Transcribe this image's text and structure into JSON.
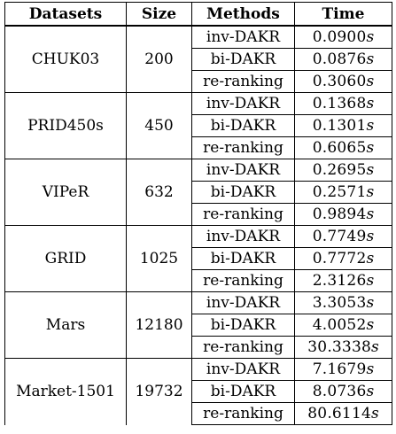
{
  "headers": [
    "Datasets",
    "Size",
    "Methods",
    "Time"
  ],
  "time_unit": "s",
  "groups": [
    {
      "dataset": "CHUK03",
      "size": "200",
      "rows": [
        {
          "method": "inv-DAKR",
          "time": "0.0900"
        },
        {
          "method": "bi-DAKR",
          "time": "0.0876"
        },
        {
          "method": "re-ranking",
          "time": "0.3060"
        }
      ]
    },
    {
      "dataset": "PRID450s",
      "size": "450",
      "rows": [
        {
          "method": "inv-DAKR",
          "time": "0.1368"
        },
        {
          "method": "bi-DAKR",
          "time": "0.1301"
        },
        {
          "method": "re-ranking",
          "time": "0.6065"
        }
      ]
    },
    {
      "dataset": "VIPeR",
      "size": "632",
      "rows": [
        {
          "method": "inv-DAKR",
          "time": "0.2695"
        },
        {
          "method": "bi-DAKR",
          "time": "0.2571"
        },
        {
          "method": "re-ranking",
          "time": "0.9894"
        }
      ]
    },
    {
      "dataset": "GRID",
      "size": "1025",
      "rows": [
        {
          "method": "inv-DAKR",
          "time": "0.7749"
        },
        {
          "method": "bi-DAKR",
          "time": "0.7772"
        },
        {
          "method": "re-ranking",
          "time": "2.3126"
        }
      ]
    },
    {
      "dataset": "Mars",
      "size": "12180",
      "rows": [
        {
          "method": "inv-DAKR",
          "time": "3.3053"
        },
        {
          "method": "bi-DAKR",
          "time": "4.0052"
        },
        {
          "method": "re-ranking",
          "time": "30.3338"
        }
      ]
    },
    {
      "dataset": "Market-1501",
      "size": "19732",
      "rows": [
        {
          "method": "inv-DAKR",
          "time": "7.1679"
        },
        {
          "method": "bi-DAKR",
          "time": "8.0736"
        },
        {
          "method": "re-ranking",
          "time": "80.6114"
        }
      ]
    }
  ]
}
